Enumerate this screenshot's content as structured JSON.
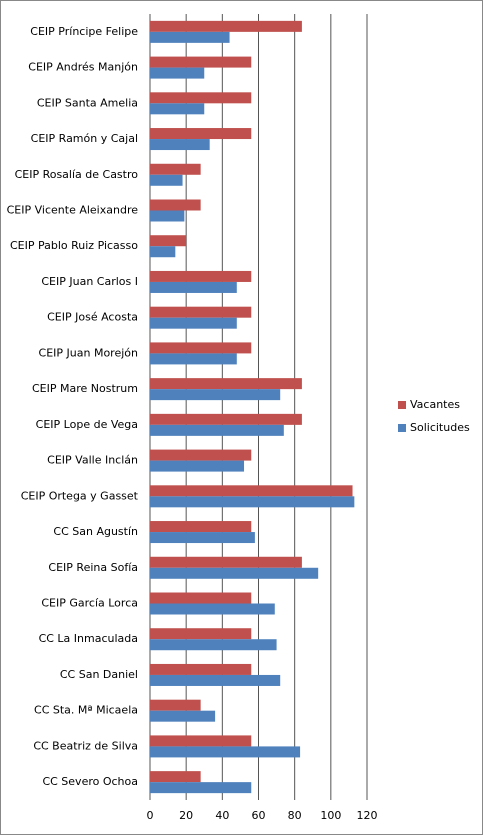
{
  "chart_data": {
    "type": "hbar",
    "categories": [
      "CEIP Príncipe Felipe",
      "CEIP Andrés Manjón",
      "CEIP Santa Amelia",
      "CEIP Ramón y Cajal",
      "CEIP Rosalía de Castro",
      "CEIP Vicente Aleixandre",
      "CEIP Pablo Ruiz Picasso",
      "CEIP Juan Carlos I",
      "CEIP José Acosta",
      "CEIP Juan Morejón",
      "CEIP Mare Nostrum",
      "CEIP Lope de Vega",
      "CEIP Valle Inclán",
      "CEIP Ortega y Gasset",
      "CC San Agustín",
      "CEIP Reina Sofía",
      "CEIP García Lorca",
      "CC La Inmaculada",
      "CC San Daniel",
      "CC Sta.  Mª Micaela",
      "CC Beatriz de Silva",
      "CC Severo Ochoa"
    ],
    "series": [
      {
        "name": "Vacantes",
        "color": "#c0504d",
        "values": [
          84,
          56,
          56,
          56,
          28,
          28,
          20,
          56,
          56,
          56,
          84,
          84,
          56,
          112,
          56,
          84,
          56,
          56,
          56,
          28,
          56,
          28
        ]
      },
      {
        "name": "Solicitudes",
        "color": "#4f81bd",
        "values": [
          44,
          30,
          30,
          33,
          18,
          19,
          14,
          48,
          48,
          48,
          72,
          74,
          52,
          113,
          58,
          93,
          69,
          70,
          72,
          36,
          83,
          56
        ]
      }
    ],
    "xlim": [
      0,
      120
    ],
    "xticks": [
      0,
      20,
      40,
      60,
      80,
      100,
      120
    ],
    "grid": true,
    "legend": "right"
  }
}
